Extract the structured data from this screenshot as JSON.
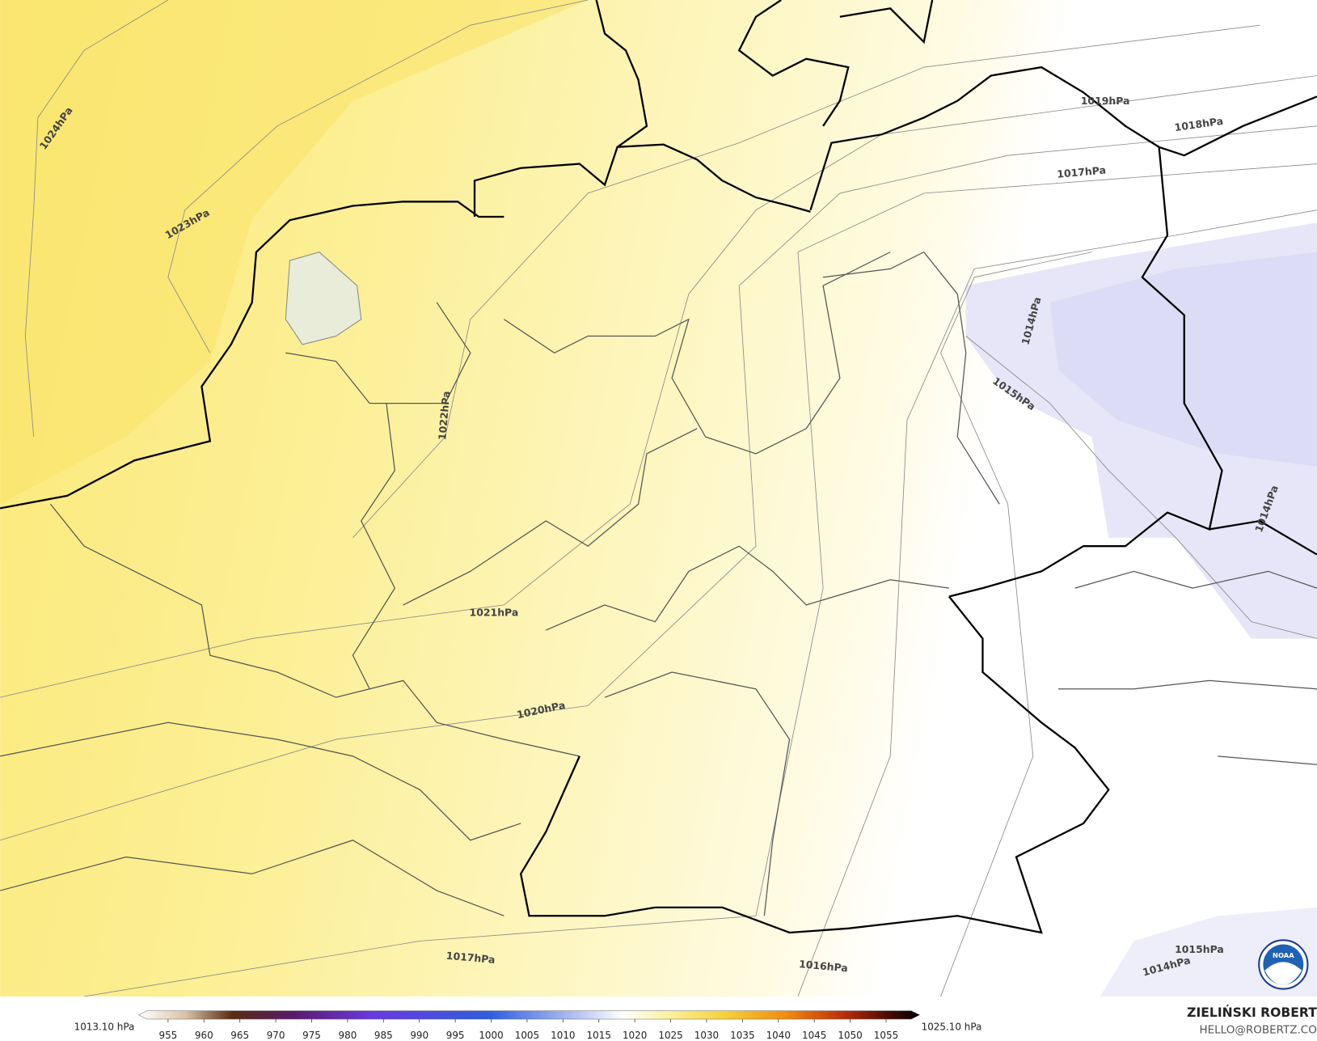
{
  "map": {
    "isobar_labels": [
      "1024hPa",
      "1023hPa",
      "1022hPa",
      "1021hPa",
      "1020hPa",
      "1019hPa",
      "1018hPa",
      "1017hPa",
      "1014hPa",
      "1015hPa",
      "1014hPa",
      "1017hPa",
      "1016hPa",
      "1015hPa",
      "1014hPa"
    ],
    "colorbar": {
      "ticks": [
        955,
        960,
        965,
        970,
        975,
        980,
        985,
        990,
        995,
        1000,
        1005,
        1010,
        1015,
        1020,
        1025,
        1030,
        1035,
        1040,
        1045,
        1050,
        1055
      ],
      "min_label": "1013.10 hPa",
      "max_label": "1025.10 hPa"
    },
    "credit": {
      "author": "ZIELIŃSKI ROBERT",
      "email": "HELLO@ROBERTZ.CO"
    },
    "logo": "NOAA"
  }
}
